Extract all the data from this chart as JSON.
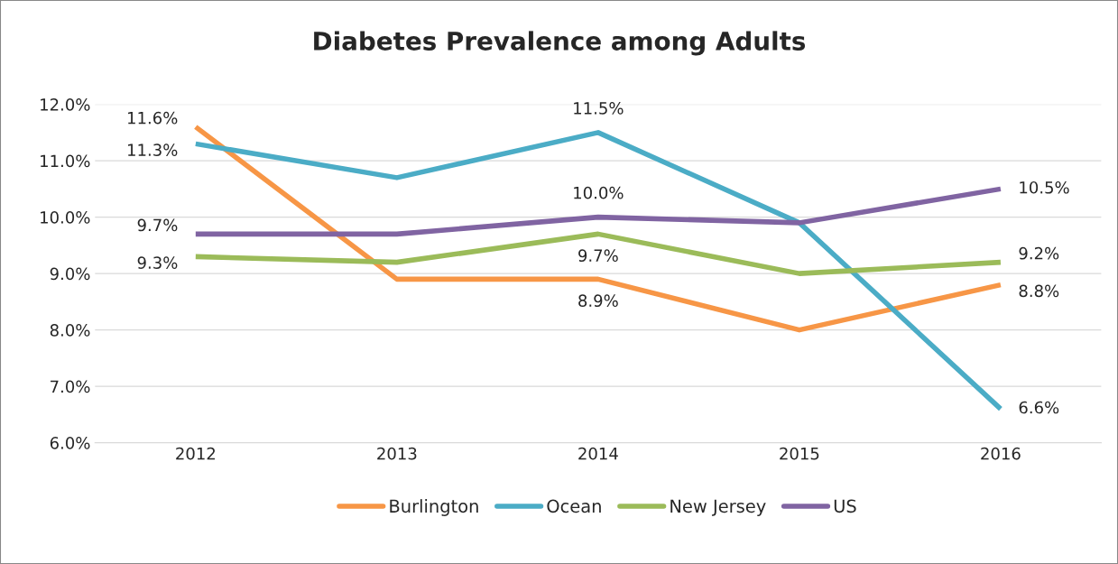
{
  "chart_data": {
    "type": "line",
    "title": "Diabetes Prevalence among Adults",
    "categories": [
      "2012",
      "2013",
      "2014",
      "2015",
      "2016"
    ],
    "series": [
      {
        "name": "Burlington",
        "color": "#f79646",
        "values": [
          11.6,
          8.9,
          8.9,
          8.0,
          8.8
        ],
        "value_labels": [
          "11.6%",
          null,
          "8.9%",
          null,
          "8.8%"
        ]
      },
      {
        "name": "Ocean",
        "color": "#4bacc6",
        "values": [
          11.3,
          10.7,
          11.5,
          9.9,
          6.6
        ],
        "value_labels": [
          "11.3%",
          null,
          "11.5%",
          null,
          "6.6%"
        ]
      },
      {
        "name": "New Jersey",
        "color": "#9bbb59",
        "values": [
          9.3,
          9.2,
          9.7,
          9.0,
          9.2
        ],
        "value_labels": [
          "9.3%",
          null,
          "9.7%",
          null,
          "9.2%"
        ]
      },
      {
        "name": "US",
        "color": "#8064a2",
        "values": [
          9.7,
          9.7,
          10.0,
          9.9,
          10.5
        ],
        "value_labels": [
          "9.7%",
          null,
          "10.0%",
          null,
          "10.5%"
        ]
      }
    ],
    "ylim": [
      6,
      12
    ],
    "yticks": [
      {
        "value": 6,
        "label": "6.0%"
      },
      {
        "value": 7,
        "label": "7.0%"
      },
      {
        "value": 8,
        "label": "8.0%"
      },
      {
        "value": 9,
        "label": "9.0%"
      },
      {
        "value": 10,
        "label": "10.0%"
      },
      {
        "value": 11,
        "label": "11.0%"
      },
      {
        "value": 12,
        "label": "12.0%"
      }
    ],
    "grid": "y",
    "legend": "bottom",
    "marker": "none",
    "line_style": "solid"
  }
}
